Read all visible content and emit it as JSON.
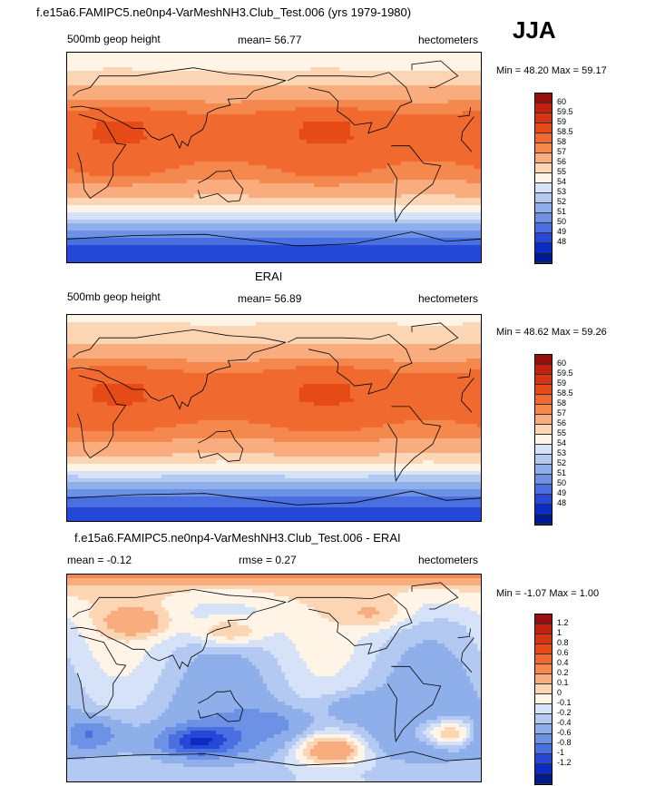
{
  "season": "JJA",
  "panels": [
    {
      "title": "f.e15a6.FAMIPC5.ne0np4-VarMeshNH3.Club_Test.006 (yrs 1979-1980)",
      "left_label": "500mb geop height",
      "mean_label": "mean=  56.77",
      "units": "hectometers",
      "minmax": "Min =  48.20 Max =  59.17",
      "colorbar": {
        "labels": [
          "60",
          "59.5",
          "59",
          "58.5",
          "58",
          "57",
          "56",
          "55",
          "54",
          "53",
          "52",
          "51",
          "50",
          "49",
          "48"
        ],
        "colors": [
          "#9b0d0d",
          "#c0220f",
          "#d93412",
          "#e64a17",
          "#f06a2f",
          "#f5894d",
          "#f9ad7f",
          "#fcd5b5",
          "#fff4e6",
          "#d5e2f8",
          "#b3c9f2",
          "#8fafeb",
          "#6d91e4",
          "#4a6fe0",
          "#2548d6",
          "#0a2bc4",
          "#001a90"
        ]
      },
      "field_bands": [
        {
          "lat": 90,
          "value": 55.5
        },
        {
          "lat": 75,
          "value": 56
        },
        {
          "lat": 60,
          "value": 57.2
        },
        {
          "lat": 45,
          "value": 58.3
        },
        {
          "lat": 30,
          "value": 58.9
        },
        {
          "lat": 15,
          "value": 58.9
        },
        {
          "lat": 0,
          "value": 58.7
        },
        {
          "lat": -15,
          "value": 58.4
        },
        {
          "lat": -30,
          "value": 57.5
        },
        {
          "lat": -45,
          "value": 55.5
        },
        {
          "lat": -60,
          "value": 52.5
        },
        {
          "lat": -75,
          "value": 50
        },
        {
          "lat": -90,
          "value": 49
        }
      ]
    },
    {
      "title": "ERAI",
      "left_label": "500mb geop height",
      "mean_label": "mean=  56.89",
      "units": "hectometers",
      "minmax": "Min =  48.62 Max =  59.26",
      "colorbar": {
        "labels": [
          "60",
          "59.5",
          "59",
          "58.5",
          "58",
          "57",
          "56",
          "55",
          "54",
          "53",
          "52",
          "51",
          "50",
          "49",
          "48"
        ],
        "colors": [
          "#9b0d0d",
          "#c0220f",
          "#d93412",
          "#e64a17",
          "#f06a2f",
          "#f5894d",
          "#f9ad7f",
          "#fcd5b5",
          "#fff4e6",
          "#d5e2f8",
          "#b3c9f2",
          "#8fafeb",
          "#6d91e4",
          "#4a6fe0",
          "#2548d6",
          "#0a2bc4",
          "#001a90"
        ]
      },
      "field_bands": [
        {
          "lat": 90,
          "value": 55.8
        },
        {
          "lat": 75,
          "value": 56.2
        },
        {
          "lat": 60,
          "value": 57.4
        },
        {
          "lat": 45,
          "value": 58.4
        },
        {
          "lat": 30,
          "value": 58.9
        },
        {
          "lat": 15,
          "value": 58.9
        },
        {
          "lat": 0,
          "value": 58.7
        },
        {
          "lat": -15,
          "value": 58.3
        },
        {
          "lat": -30,
          "value": 57.3
        },
        {
          "lat": -45,
          "value": 55.2
        },
        {
          "lat": -60,
          "value": 52.2
        },
        {
          "lat": -75,
          "value": 50.2
        },
        {
          "lat": -90,
          "value": 49
        }
      ]
    },
    {
      "title": "f.e15a6.FAMIPC5.ne0np4-VarMeshNH3.Club_Test.006 - ERAI",
      "left_label": "mean =  -0.12",
      "mean_label": "rmse =   0.27",
      "units": "hectometers",
      "minmax": "Min =  -1.07 Max =   1.00",
      "colorbar": {
        "labels": [
          "1.2",
          "1",
          "0.8",
          "0.6",
          "0.4",
          "0.2",
          "0.1",
          "0",
          "-0.1",
          "-0.2",
          "-0.4",
          "-0.6",
          "-0.8",
          "-1",
          "-1.2"
        ],
        "colors": [
          "#9b0d0d",
          "#c0220f",
          "#d93412",
          "#e64a17",
          "#f06a2f",
          "#f5894d",
          "#f9ad7f",
          "#fcd5b5",
          "#fff4e6",
          "#d5e2f8",
          "#b3c9f2",
          "#8fafeb",
          "#6d91e4",
          "#4a6fe0",
          "#2548d6",
          "#0a2bc4",
          "#001a90"
        ]
      },
      "field_bands": [
        {
          "lat": 90,
          "value": 0.6
        },
        {
          "lat": 80,
          "value": 0.15
        },
        {
          "lat": 65,
          "value": 0.05
        },
        {
          "lat": 45,
          "value": -0.05
        },
        {
          "lat": 20,
          "value": -0.1
        },
        {
          "lat": 0,
          "value": -0.15
        },
        {
          "lat": -20,
          "value": -0.2
        },
        {
          "lat": -40,
          "value": -0.25
        },
        {
          "lat": -60,
          "value": -0.3
        },
        {
          "lat": -75,
          "value": -0.15
        },
        {
          "lat": -90,
          "value": -0.1
        }
      ],
      "anomalies": [
        {
          "lon": 60,
          "lat": 48,
          "value": 0.3
        },
        {
          "lon": 140,
          "lat": 40,
          "value": 0.35
        },
        {
          "lon": 270,
          "lat": 55,
          "value": 0.2
        },
        {
          "lon": 340,
          "lat": -48,
          "value": 0.7
        },
        {
          "lon": 230,
          "lat": -62,
          "value": 0.6
        },
        {
          "lon": 10,
          "lat": -48,
          "value": -0.6
        },
        {
          "lon": 115,
          "lat": -55,
          "value": -0.7
        },
        {
          "lon": 175,
          "lat": -40,
          "value": -0.3
        },
        {
          "lon": 250,
          "lat": -25,
          "value": -0.2
        }
      ]
    }
  ],
  "chart_data": [
    {
      "type": "heatmap",
      "title": "f.e15a6.FAMIPC5.ne0np4-VarMeshNH3.Club_Test.006 (yrs 1979-1980)",
      "variable": "500mb geop height",
      "units": "hectometers",
      "mean": 56.77,
      "min": 48.2,
      "max": 59.17,
      "levels": [
        48,
        49,
        50,
        51,
        52,
        53,
        54,
        55,
        56,
        57,
        58,
        58.5,
        59,
        59.5,
        60
      ]
    },
    {
      "type": "heatmap",
      "title": "ERAI",
      "variable": "500mb geop height",
      "units": "hectometers",
      "mean": 56.89,
      "min": 48.62,
      "max": 59.26,
      "levels": [
        48,
        49,
        50,
        51,
        52,
        53,
        54,
        55,
        56,
        57,
        58,
        58.5,
        59,
        59.5,
        60
      ]
    },
    {
      "type": "heatmap",
      "title": "f.e15a6.FAMIPC5.ne0np4-VarMeshNH3.Club_Test.006 - ERAI",
      "units": "hectometers",
      "mean": -0.12,
      "rmse": 0.27,
      "min": -1.07,
      "max": 1.0,
      "levels": [
        -1.2,
        -1,
        -0.8,
        -0.6,
        -0.4,
        -0.2,
        -0.1,
        0,
        0.1,
        0.2,
        0.4,
        0.6,
        0.8,
        1,
        1.2
      ]
    }
  ]
}
